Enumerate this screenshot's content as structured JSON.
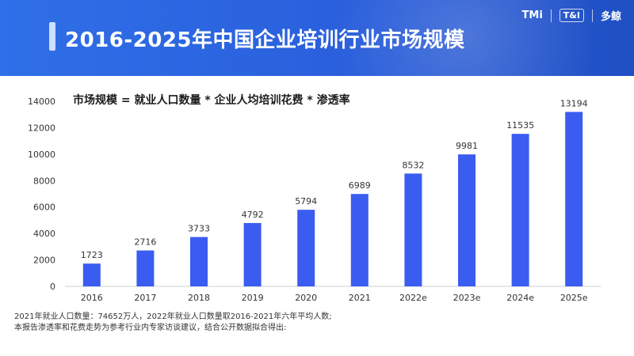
{
  "header": {
    "title": "2016-2025年中国企业培训行业市场规模",
    "brand_logo": "TMi",
    "brand_tag": "T&I",
    "brand_name": "多鲸"
  },
  "chart_data": {
    "type": "bar",
    "title": "市场规模 = 就业人口数量 * 企业人均培训花费 * 渗透率",
    "categories": [
      "2016",
      "2017",
      "2018",
      "2019",
      "2020",
      "2021",
      "2022e",
      "2023e",
      "2024e",
      "2025e"
    ],
    "values": [
      1723,
      2716,
      3733,
      4792,
      5794,
      6989,
      8532,
      9981,
      11535,
      13194
    ],
    "ylim": [
      0,
      14000
    ],
    "yticks": [
      0,
      2000,
      4000,
      6000,
      8000,
      10000,
      12000,
      14000
    ],
    "grid": false,
    "bar_color": "#3a5cf0"
  },
  "notes": {
    "line1": "2021年就业人口数量：74652万人，2022年就业人口数量取2016-2021年六年平均人数;",
    "line2": "本报告渗透率和花费走势为参考行业内专家访谈建议，结合公开数据拟合得出:"
  }
}
